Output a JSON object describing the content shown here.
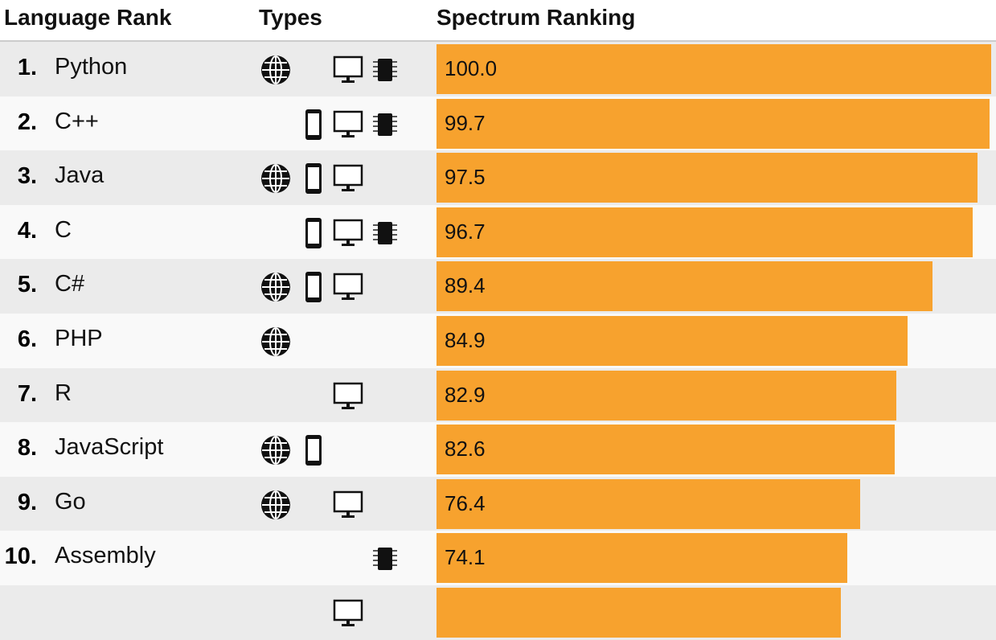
{
  "header": {
    "rank": "Language Rank",
    "types": "Types",
    "ranking": "Spectrum Ranking"
  },
  "colors": {
    "bar": "#f7a22e",
    "row_odd": "#ebebeb",
    "row_even": "#f9f9f9"
  },
  "chart_data": {
    "type": "bar",
    "orientation": "horizontal",
    "xlim": [
      0,
      100
    ],
    "categories": [
      "Python",
      "C++",
      "Java",
      "C",
      "C#",
      "PHP",
      "R",
      "JavaScript",
      "Go",
      "Assembly"
    ],
    "ranks": [
      "1.",
      "2.",
      "3.",
      "4.",
      "5.",
      "6.",
      "7.",
      "8.",
      "9.",
      "10."
    ],
    "values": [
      100.0,
      99.7,
      97.5,
      96.7,
      89.4,
      84.9,
      82.9,
      82.6,
      76.4,
      74.1
    ],
    "labels": [
      "100.0",
      "99.7",
      "97.5",
      "96.7",
      "89.4",
      "84.9",
      "82.9",
      "82.6",
      "76.4",
      "74.1"
    ],
    "types": [
      [
        "web",
        "desktop",
        "embedded"
      ],
      [
        "mobile",
        "desktop",
        "embedded"
      ],
      [
        "web",
        "mobile",
        "desktop"
      ],
      [
        "mobile",
        "desktop",
        "embedded"
      ],
      [
        "web",
        "mobile",
        "desktop"
      ],
      [
        "web"
      ],
      [
        "desktop"
      ],
      [
        "web",
        "mobile"
      ],
      [
        "web",
        "desktop"
      ],
      [
        "embedded"
      ]
    ],
    "partial_row": {
      "value": 72.9,
      "types": [
        "desktop"
      ]
    }
  }
}
